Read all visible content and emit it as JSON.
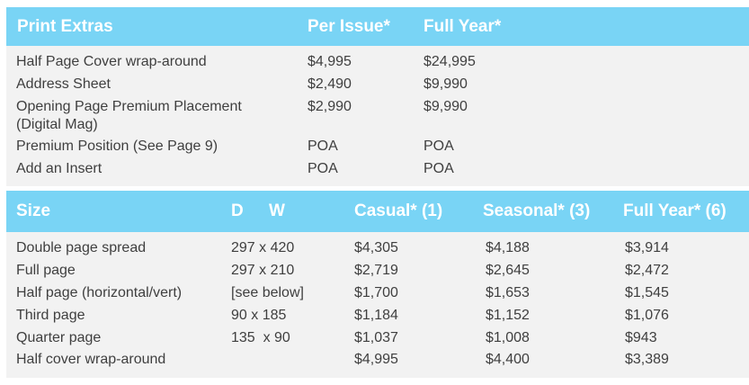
{
  "extras": {
    "headers": {
      "item": "Print Extras",
      "per_issue": "Per Issue*",
      "full_year": "Full Year*"
    },
    "rows": [
      {
        "item": "Half Page Cover wrap-around",
        "per_issue": "$4,995",
        "full_year": "$24,995"
      },
      {
        "item": "Address Sheet",
        "per_issue": "$2,490",
        "full_year": "$9,990"
      },
      {
        "item": "Opening Page Premium Placement",
        "item_line2": "(Digital Mag)",
        "per_issue": "$2,990",
        "full_year": "$9,990"
      },
      {
        "item": "Premium Position (See Page 9)",
        "per_issue": "POA",
        "full_year": "POA"
      },
      {
        "item": "Add an Insert",
        "per_issue": "POA",
        "full_year": "POA"
      }
    ]
  },
  "sizes": {
    "headers": {
      "size": "Size",
      "d": "D",
      "w": "W",
      "casual": "Casual* (1)",
      "seasonal": "Seasonal* (3)",
      "full_year": "Full Year* (6)"
    },
    "rows": [
      {
        "size": "Double page spread",
        "dims": "297 x 420",
        "casual": "$4,305",
        "seasonal": "$4,188",
        "full_year": "$3,914"
      },
      {
        "size": "Full page",
        "dims": "297 x 210",
        "casual": "$2,719",
        "seasonal": "$2,645",
        "full_year": "$2,472"
      },
      {
        "size": "Half page (horizontal/vert)",
        "dims": "[see below]",
        "casual": "$1,700",
        "seasonal": "$1,653",
        "full_year": "$1,545"
      },
      {
        "size": "Third page",
        "dims": "90 x 185",
        "casual": "$1,184",
        "seasonal": "$1,152",
        "full_year": "$1,076"
      },
      {
        "size": "Quarter page",
        "dims": "135  x 90",
        "casual": "$1,037",
        "seasonal": "$1,008",
        "full_year": "$943"
      },
      {
        "size": "Half cover wrap-around",
        "dims": "",
        "casual": "$4,995",
        "seasonal": "$4,400",
        "full_year": "$3,389"
      }
    ]
  }
}
